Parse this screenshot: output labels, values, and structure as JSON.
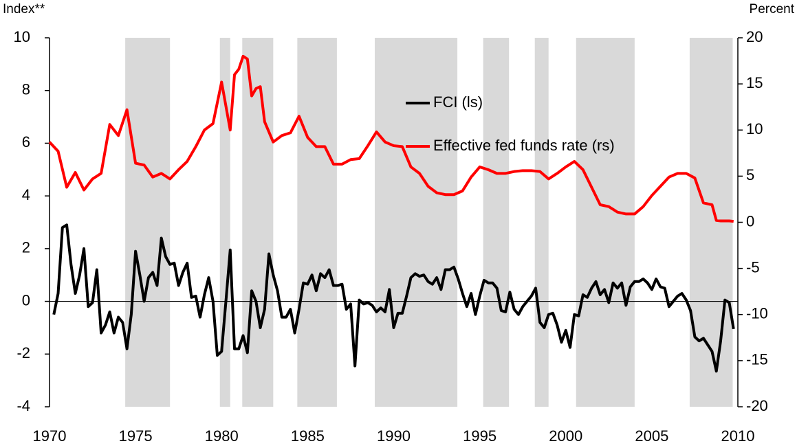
{
  "chart_data": {
    "type": "line",
    "y_label": "Index**",
    "y2_label": "Percent",
    "xlim": [
      1970,
      2010
    ],
    "xticks": [
      1970,
      1975,
      1980,
      1985,
      1990,
      1995,
      2000,
      2005,
      2010
    ],
    "ylim": [
      -4,
      10
    ],
    "yticks": [
      -4,
      -2,
      0,
      2,
      4,
      6,
      8,
      10
    ],
    "y2lim": [
      -20,
      20
    ],
    "y2ticks": [
      -20,
      -15,
      -10,
      -5,
      0,
      5,
      10,
      15,
      20
    ],
    "zero_line": true,
    "legend_position": "center",
    "band_color": "#d9d9d9",
    "shaded_periods": [
      [
        1974.4,
        1977
      ],
      [
        1979.9,
        1980.5
      ],
      [
        1981.2,
        1983
      ],
      [
        1984.4,
        1986.7
      ],
      [
        1988.9,
        1993.7
      ],
      [
        1995.2,
        1996.7
      ],
      [
        1998.2,
        1999
      ],
      [
        2000.6,
        2004
      ],
      [
        2007.2,
        2009.7
      ]
    ],
    "series": [
      {
        "name": "FCI (ls)",
        "color": "#000000",
        "x": [
          1970.25,
          1970.5,
          1970.75,
          1971,
          1971.25,
          1971.5,
          1971.75,
          1972,
          1972.25,
          1972.5,
          1972.75,
          1973,
          1973.25,
          1973.5,
          1973.75,
          1974,
          1974.25,
          1974.5,
          1974.75,
          1975,
          1975.25,
          1975.5,
          1975.75,
          1976,
          1976.25,
          1976.5,
          1976.75,
          1977,
          1977.25,
          1977.5,
          1977.75,
          1978,
          1978.25,
          1978.5,
          1978.75,
          1979,
          1979.25,
          1979.5,
          1979.75,
          1980,
          1980.25,
          1980.5,
          1980.75,
          1981,
          1981.25,
          1981.5,
          1981.75,
          1982,
          1982.25,
          1982.5,
          1982.75,
          1983,
          1983.25,
          1983.5,
          1983.75,
          1984,
          1984.25,
          1984.5,
          1984.75,
          1985,
          1985.25,
          1985.5,
          1985.75,
          1986,
          1986.25,
          1986.5,
          1986.75,
          1987,
          1987.25,
          1987.5,
          1987.75,
          1988,
          1988.25,
          1988.5,
          1988.75,
          1989,
          1989.25,
          1989.5,
          1989.75,
          1990,
          1990.25,
          1990.5,
          1990.75,
          1991,
          1991.25,
          1991.5,
          1991.75,
          1992,
          1992.25,
          1992.5,
          1992.75,
          1993,
          1993.25,
          1993.5,
          1993.75,
          1994,
          1994.25,
          1994.5,
          1994.75,
          1995,
          1995.25,
          1995.5,
          1995.75,
          1996,
          1996.25,
          1996.5,
          1996.75,
          1997,
          1997.25,
          1997.5,
          1997.75,
          1998,
          1998.25,
          1998.5,
          1998.75,
          1999,
          1999.25,
          1999.5,
          1999.75,
          2000,
          2000.25,
          2000.5,
          2000.75,
          2001,
          2001.25,
          2001.5,
          2001.75,
          2002,
          2002.25,
          2002.5,
          2002.75,
          2003,
          2003.25,
          2003.5,
          2003.75,
          2004,
          2004.25,
          2004.5,
          2004.75,
          2005,
          2005.25,
          2005.5,
          2005.75,
          2006,
          2006.25,
          2006.5,
          2006.75,
          2007,
          2007.25,
          2007.5,
          2007.75,
          2008,
          2008.25,
          2008.5,
          2008.75,
          2009,
          2009.25,
          2009.5,
          2009.75
        ],
        "values": [
          -0.5,
          0.3,
          2.8,
          2.9,
          1.4,
          0.3,
          1.0,
          2.0,
          -0.2,
          -0.05,
          1.2,
          -1.2,
          -0.9,
          -0.4,
          -1.2,
          -0.6,
          -0.8,
          -1.8,
          -0.5,
          1.9,
          1.0,
          0.0,
          0.9,
          1.1,
          0.6,
          2.4,
          1.7,
          1.4,
          1.45,
          0.6,
          1.1,
          1.45,
          0.15,
          0.2,
          -0.6,
          0.25,
          0.9,
          0.0,
          -2.05,
          -1.9,
          0.0,
          1.95,
          -1.8,
          -1.8,
          -1.3,
          -1.95,
          0.4,
          0.0,
          -1.0,
          -0.3,
          1.8,
          1.0,
          0.4,
          -0.6,
          -0.6,
          -0.3,
          -1.2,
          -0.3,
          0.7,
          0.65,
          1.0,
          0.4,
          1.05,
          0.9,
          1.2,
          0.6,
          0.6,
          0.65,
          -0.3,
          -0.1,
          -2.45,
          0.05,
          -0.1,
          -0.05,
          -0.15,
          -0.4,
          -0.25,
          -0.4,
          0.45,
          -1.0,
          -0.45,
          -0.45,
          0.2,
          0.9,
          1.05,
          0.95,
          1.0,
          0.75,
          0.65,
          0.9,
          0.45,
          1.2,
          1.2,
          1.3,
          0.85,
          0.3,
          -0.2,
          0.3,
          -0.5,
          0.2,
          0.8,
          0.7,
          0.7,
          0.5,
          -0.35,
          -0.4,
          0.35,
          -0.3,
          -0.5,
          -0.2,
          0.0,
          0.2,
          0.5,
          -0.8,
          -1.0,
          -0.5,
          -0.45,
          -0.9,
          -1.55,
          -1.1,
          -1.75,
          -0.5,
          -0.55,
          0.25,
          0.15,
          0.5,
          0.75,
          0.25,
          0.45,
          -0.05,
          0.7,
          0.5,
          0.7,
          -0.15,
          0.55,
          0.75,
          0.75,
          0.85,
          0.7,
          0.45,
          0.85,
          0.55,
          0.5,
          -0.2,
          0.0,
          0.2,
          0.3,
          0.05,
          -0.35,
          -1.35,
          -1.5,
          -1.4,
          -1.65,
          -1.9,
          -2.65,
          -1.5,
          0.05,
          -0.05,
          -1.05
        ]
      },
      {
        "name": "Effective fed funds rate (rs)",
        "color": "#ff0000",
        "axis": "y2",
        "x": [
          1970,
          1970.5,
          1971,
          1971.5,
          1972,
          1972.5,
          1973,
          1973.5,
          1974,
          1974.5,
          1975,
          1975.5,
          1976,
          1976.5,
          1977,
          1977.5,
          1978,
          1978.5,
          1979,
          1979.5,
          1980,
          1980.5,
          1980.75,
          1981,
          1981.25,
          1981.5,
          1981.75,
          1982,
          1982.25,
          1982.5,
          1983,
          1983.5,
          1984,
          1984.5,
          1985,
          1985.5,
          1986,
          1986.5,
          1987,
          1987.5,
          1988,
          1988.5,
          1989,
          1989.5,
          1990,
          1990.5,
          1991,
          1991.5,
          1992,
          1992.5,
          1993,
          1993.5,
          1994,
          1994.5,
          1995,
          1995.5,
          1996,
          1996.5,
          1997,
          1997.5,
          1998,
          1998.5,
          1999,
          1999.5,
          2000,
          2000.5,
          2001,
          2001.5,
          2002,
          2002.5,
          2003,
          2003.5,
          2004,
          2004.5,
          2005,
          2005.5,
          2006,
          2006.5,
          2007,
          2007.5,
          2008,
          2008.5,
          2008.75,
          2009,
          2009.5,
          2009.75
        ],
        "values": [
          8.7,
          7.7,
          3.8,
          5.4,
          3.5,
          4.7,
          5.3,
          10.6,
          9.4,
          12.2,
          6.4,
          6.2,
          4.9,
          5.3,
          4.7,
          5.7,
          6.6,
          8.2,
          10.0,
          10.7,
          15.2,
          10.0,
          16.0,
          16.6,
          18.0,
          17.7,
          13.7,
          14.5,
          14.7,
          10.9,
          8.7,
          9.4,
          9.7,
          11.5,
          9.2,
          8.2,
          8.2,
          6.3,
          6.3,
          6.8,
          6.9,
          8.3,
          9.8,
          8.7,
          8.3,
          8.2,
          6.0,
          5.3,
          3.9,
          3.2,
          3.0,
          3.0,
          3.4,
          4.9,
          6.0,
          5.7,
          5.3,
          5.3,
          5.5,
          5.6,
          5.6,
          5.5,
          4.7,
          5.3,
          6.0,
          6.6,
          5.7,
          3.8,
          1.9,
          1.7,
          1.1,
          0.9,
          0.9,
          1.7,
          2.9,
          3.9,
          4.9,
          5.3,
          5.3,
          4.8,
          2.1,
          1.9,
          0.2,
          0.15,
          0.15,
          0.1
        ]
      }
    ]
  }
}
